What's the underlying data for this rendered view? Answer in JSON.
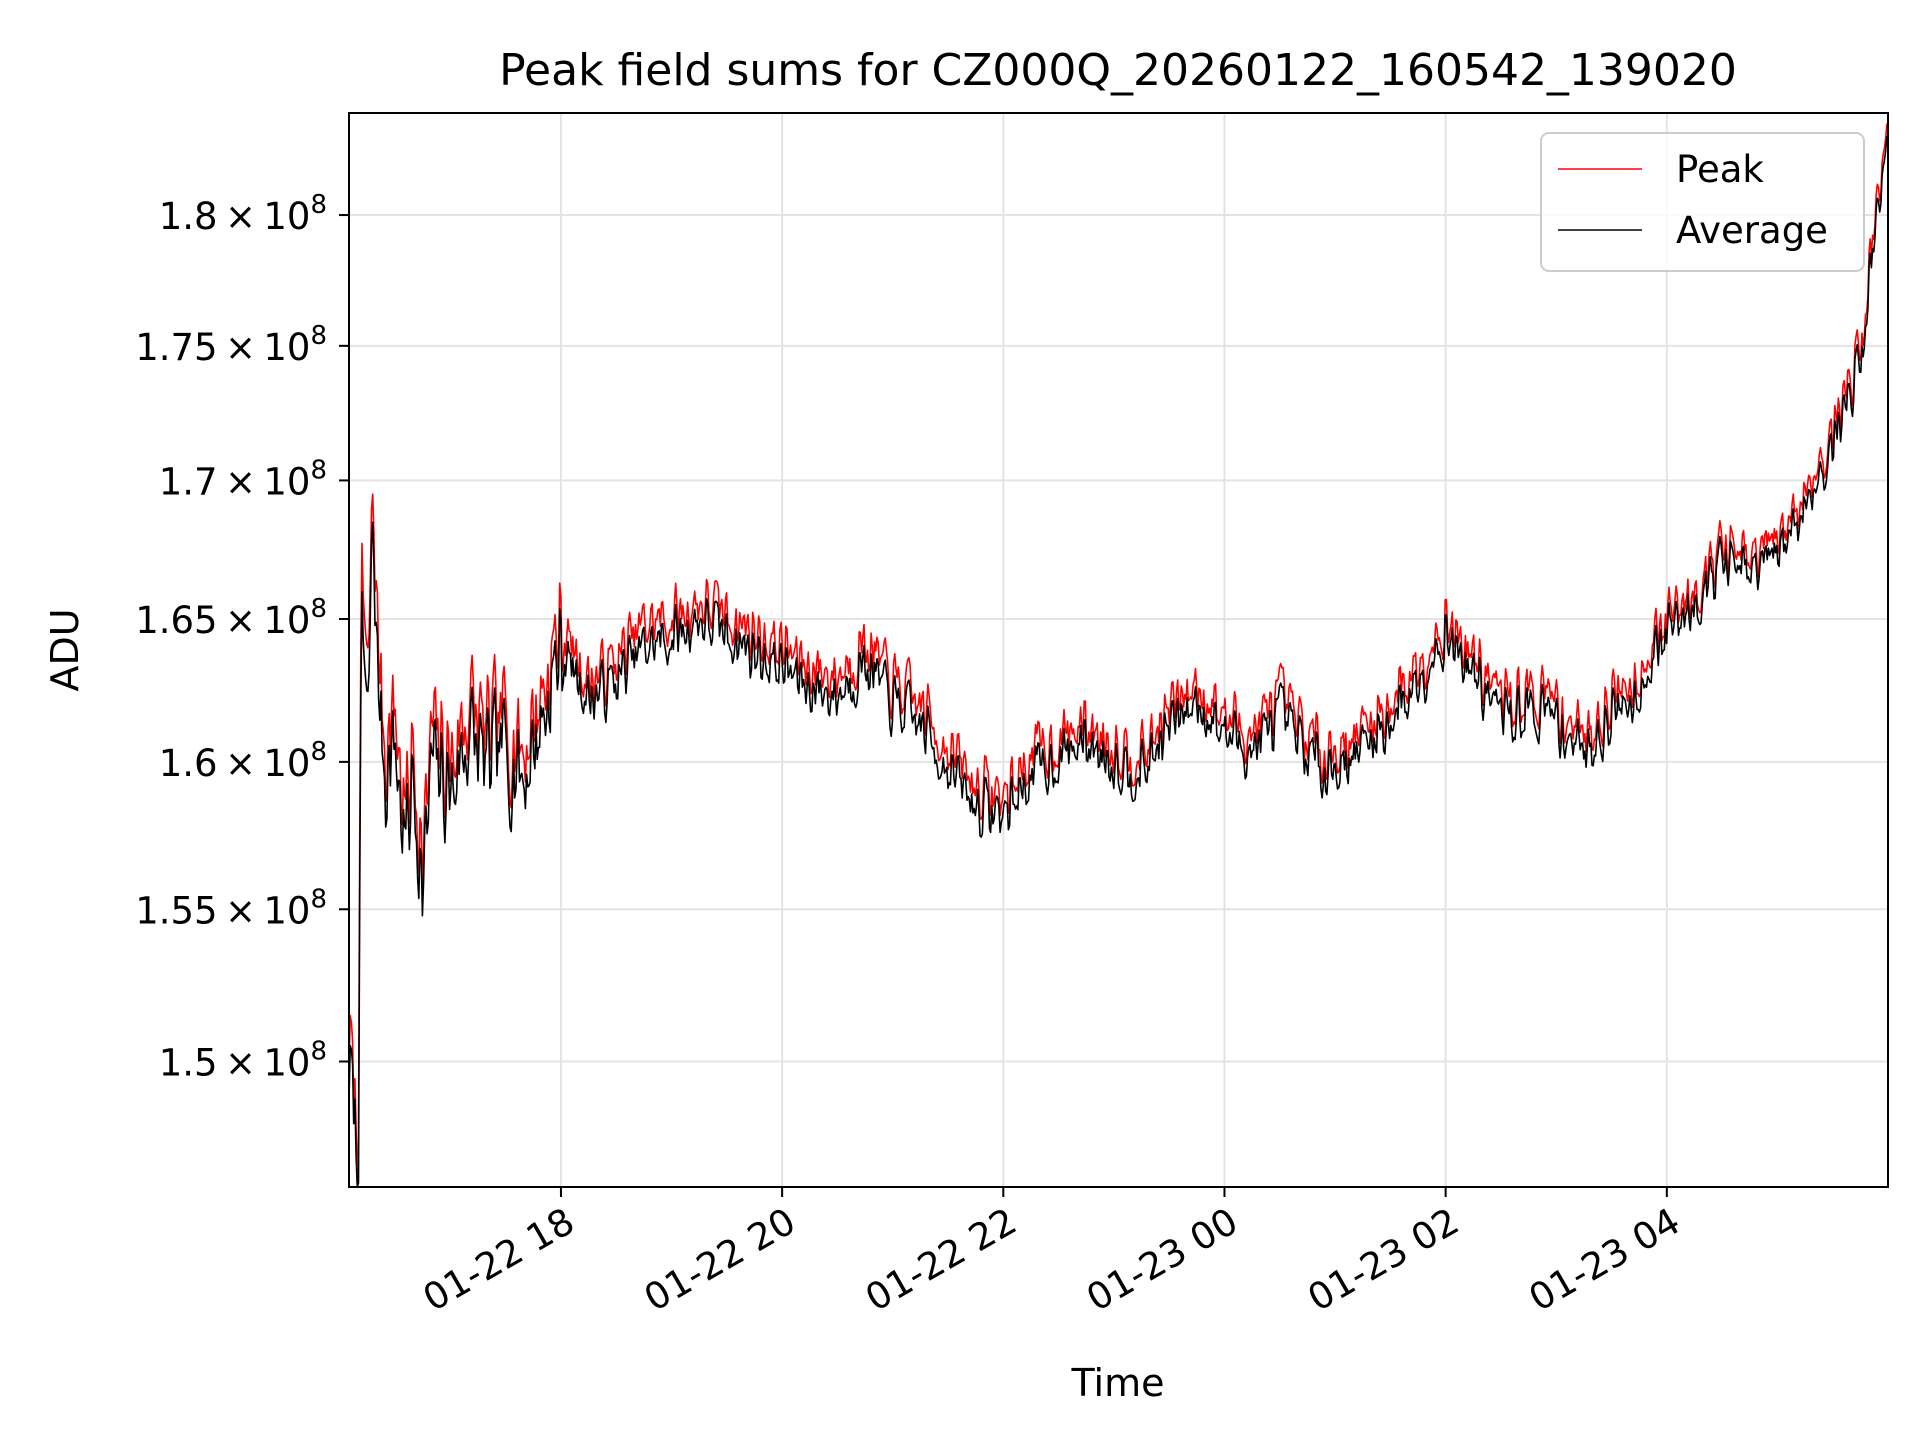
{
  "chart_data": {
    "type": "line",
    "title": "Peak field sums for CZ000Q_20260122_160542_139020",
    "xlabel": "Time",
    "ylabel": "ADU",
    "x_unit": "time",
    "xlim": [
      "2026-01-22 16:05",
      "2026-01-23 06:00"
    ],
    "ylim": [
      146000000,
      184000000
    ],
    "y_scale": "log",
    "grid": true,
    "legend_position": "top-right",
    "x_ticks": [
      {
        "t": "2026-01-22 18:00",
        "label": "01-22 18"
      },
      {
        "t": "2026-01-22 20:00",
        "label": "01-22 20"
      },
      {
        "t": "2026-01-22 22:00",
        "label": "01-22 22"
      },
      {
        "t": "2026-01-23 00:00",
        "label": "01-23 00"
      },
      {
        "t": "2026-01-23 02:00",
        "label": "01-23 02"
      },
      {
        "t": "2026-01-23 04:00",
        "label": "01-23 04"
      }
    ],
    "y_ticks": [
      {
        "value": 150000000,
        "mantissa": "1.5",
        "exp": "8"
      },
      {
        "value": 155000000,
        "mantissa": "1.55",
        "exp": "8"
      },
      {
        "value": 160000000,
        "mantissa": "1.6",
        "exp": "8"
      },
      {
        "value": 165000000,
        "mantissa": "1.65",
        "exp": "8"
      },
      {
        "value": 170000000,
        "mantissa": "1.7",
        "exp": "8"
      },
      {
        "value": 175000000,
        "mantissa": "1.75",
        "exp": "8"
      },
      {
        "value": 180000000,
        "mantissa": "1.8",
        "exp": "8"
      }
    ],
    "series": [
      {
        "name": "Peak",
        "color": "#ff0000",
        "x": [
          "2026-01-22 16:05",
          "2026-01-22 16:08",
          "2026-01-22 16:10",
          "2026-01-22 16:12",
          "2026-01-22 16:15",
          "2026-01-22 16:18",
          "2026-01-22 16:20",
          "2026-01-22 16:25",
          "2026-01-22 16:30",
          "2026-01-22 16:35",
          "2026-01-22 16:40",
          "2026-01-22 16:45",
          "2026-01-22 16:50",
          "2026-01-22 17:00",
          "2026-01-22 17:10",
          "2026-01-22 17:20",
          "2026-01-22 17:30",
          "2026-01-22 17:40",
          "2026-01-22 17:50",
          "2026-01-22 18:00",
          "2026-01-22 18:15",
          "2026-01-22 18:30",
          "2026-01-22 18:45",
          "2026-01-22 19:00",
          "2026-01-22 19:15",
          "2026-01-22 19:30",
          "2026-01-22 19:45",
          "2026-01-22 20:00",
          "2026-01-22 20:15",
          "2026-01-22 20:30",
          "2026-01-22 20:45",
          "2026-01-22 21:00",
          "2026-01-22 21:15",
          "2026-01-22 21:30",
          "2026-01-22 21:45",
          "2026-01-22 22:00",
          "2026-01-22 22:15",
          "2026-01-22 22:30",
          "2026-01-22 22:45",
          "2026-01-22 23:00",
          "2026-01-22 23:15",
          "2026-01-22 23:30",
          "2026-01-22 23:45",
          "2026-01-23 00:00",
          "2026-01-23 00:15",
          "2026-01-23 00:30",
          "2026-01-23 00:45",
          "2026-01-23 01:00",
          "2026-01-23 01:15",
          "2026-01-23 01:30",
          "2026-01-23 01:45",
          "2026-01-23 02:00",
          "2026-01-23 02:15",
          "2026-01-23 02:30",
          "2026-01-23 02:45",
          "2026-01-23 03:00",
          "2026-01-23 03:15",
          "2026-01-23 03:30",
          "2026-01-23 03:45",
          "2026-01-23 04:00",
          "2026-01-23 04:15",
          "2026-01-23 04:30",
          "2026-01-23 04:45",
          "2026-01-23 05:00",
          "2026-01-23 05:15",
          "2026-01-23 05:30",
          "2026-01-23 05:45",
          "2026-01-23 06:00"
        ],
        "values": [
          150500000,
          149000000,
          147800000,
          167200000,
          162000000,
          170000000,
          165000000,
          160500000,
          162000000,
          158000000,
          160500000,
          156500000,
          161000000,
          160000000,
          162000000,
          160800000,
          161500000,
          160500000,
          162500000,
          164800000,
          162800000,
          163500000,
          164800000,
          165000000,
          165600000,
          165200000,
          164500000,
          164000000,
          163300000,
          163000000,
          164200000,
          162700000,
          162000000,
          160500000,
          159200000,
          158800000,
          160200000,
          160800000,
          161300000,
          160700000,
          160200000,
          161800000,
          162700000,
          161600000,
          161000000,
          162200000,
          160800000,
          160400000,
          161100000,
          162000000,
          163500000,
          165000000,
          163700000,
          162200000,
          162400000,
          162100000,
          160900000,
          162200000,
          163200000,
          165000000,
          166200000,
          167600000,
          167000000,
          167800000,
          169600000,
          171800000,
          175000000,
          184000000
        ],
        "noise_amplitude": 1500000
      },
      {
        "name": "Average",
        "color": "#000000",
        "x": [
          "2026-01-22 16:05",
          "2026-01-22 16:08",
          "2026-01-22 16:10",
          "2026-01-22 16:12",
          "2026-01-22 16:15",
          "2026-01-22 16:18",
          "2026-01-22 16:20",
          "2026-01-22 16:25",
          "2026-01-22 16:30",
          "2026-01-22 16:35",
          "2026-01-22 16:40",
          "2026-01-22 16:45",
          "2026-01-22 16:50",
          "2026-01-22 17:00",
          "2026-01-22 17:10",
          "2026-01-22 17:20",
          "2026-01-22 17:30",
          "2026-01-22 17:40",
          "2026-01-22 17:50",
          "2026-01-22 18:00",
          "2026-01-22 18:15",
          "2026-01-22 18:30",
          "2026-01-22 18:45",
          "2026-01-22 19:00",
          "2026-01-22 19:15",
          "2026-01-22 19:30",
          "2026-01-22 19:45",
          "2026-01-22 20:00",
          "2026-01-22 20:15",
          "2026-01-22 20:30",
          "2026-01-22 20:45",
          "2026-01-22 21:00",
          "2026-01-22 21:15",
          "2026-01-22 21:30",
          "2026-01-22 21:45",
          "2026-01-22 22:00",
          "2026-01-22 22:15",
          "2026-01-22 22:30",
          "2026-01-22 22:45",
          "2026-01-22 23:00",
          "2026-01-22 23:15",
          "2026-01-22 23:30",
          "2026-01-22 23:45",
          "2026-01-23 00:00",
          "2026-01-23 00:15",
          "2026-01-23 00:30",
          "2026-01-23 00:45",
          "2026-01-23 01:00",
          "2026-01-23 01:15",
          "2026-01-23 01:30",
          "2026-01-23 01:45",
          "2026-01-23 02:00",
          "2026-01-23 02:15",
          "2026-01-23 02:30",
          "2026-01-23 02:45",
          "2026-01-23 03:00",
          "2026-01-23 03:15",
          "2026-01-23 03:30",
          "2026-01-23 03:45",
          "2026-01-23 04:00",
          "2026-01-23 04:15",
          "2026-01-23 04:30",
          "2026-01-23 04:45",
          "2026-01-23 05:00",
          "2026-01-23 05:15",
          "2026-01-23 05:30",
          "2026-01-23 05:45",
          "2026-01-23 06:00"
        ],
        "values": [
          149500000,
          148500000,
          146200000,
          165500000,
          160500000,
          169000000,
          163500000,
          159500000,
          160800000,
          157000000,
          159500000,
          155500000,
          160000000,
          159000000,
          161000000,
          159800000,
          160500000,
          159500000,
          161500000,
          164000000,
          162200000,
          162800000,
          164000000,
          164300000,
          165000000,
          164500000,
          163800000,
          163300000,
          162600000,
          162300000,
          163500000,
          162000000,
          161300000,
          159800000,
          158500000,
          158200000,
          159500000,
          160200000,
          160700000,
          160100000,
          159600000,
          161200000,
          162100000,
          161000000,
          160400000,
          161600000,
          160200000,
          159800000,
          160500000,
          161400000,
          162900000,
          164500000,
          163100000,
          161600000,
          161800000,
          161500000,
          160300000,
          161600000,
          162600000,
          164500000,
          165700000,
          167100000,
          166500000,
          167300000,
          169100000,
          171300000,
          174500000,
          183500000
        ],
        "noise_amplitude": 1400000
      }
    ]
  }
}
